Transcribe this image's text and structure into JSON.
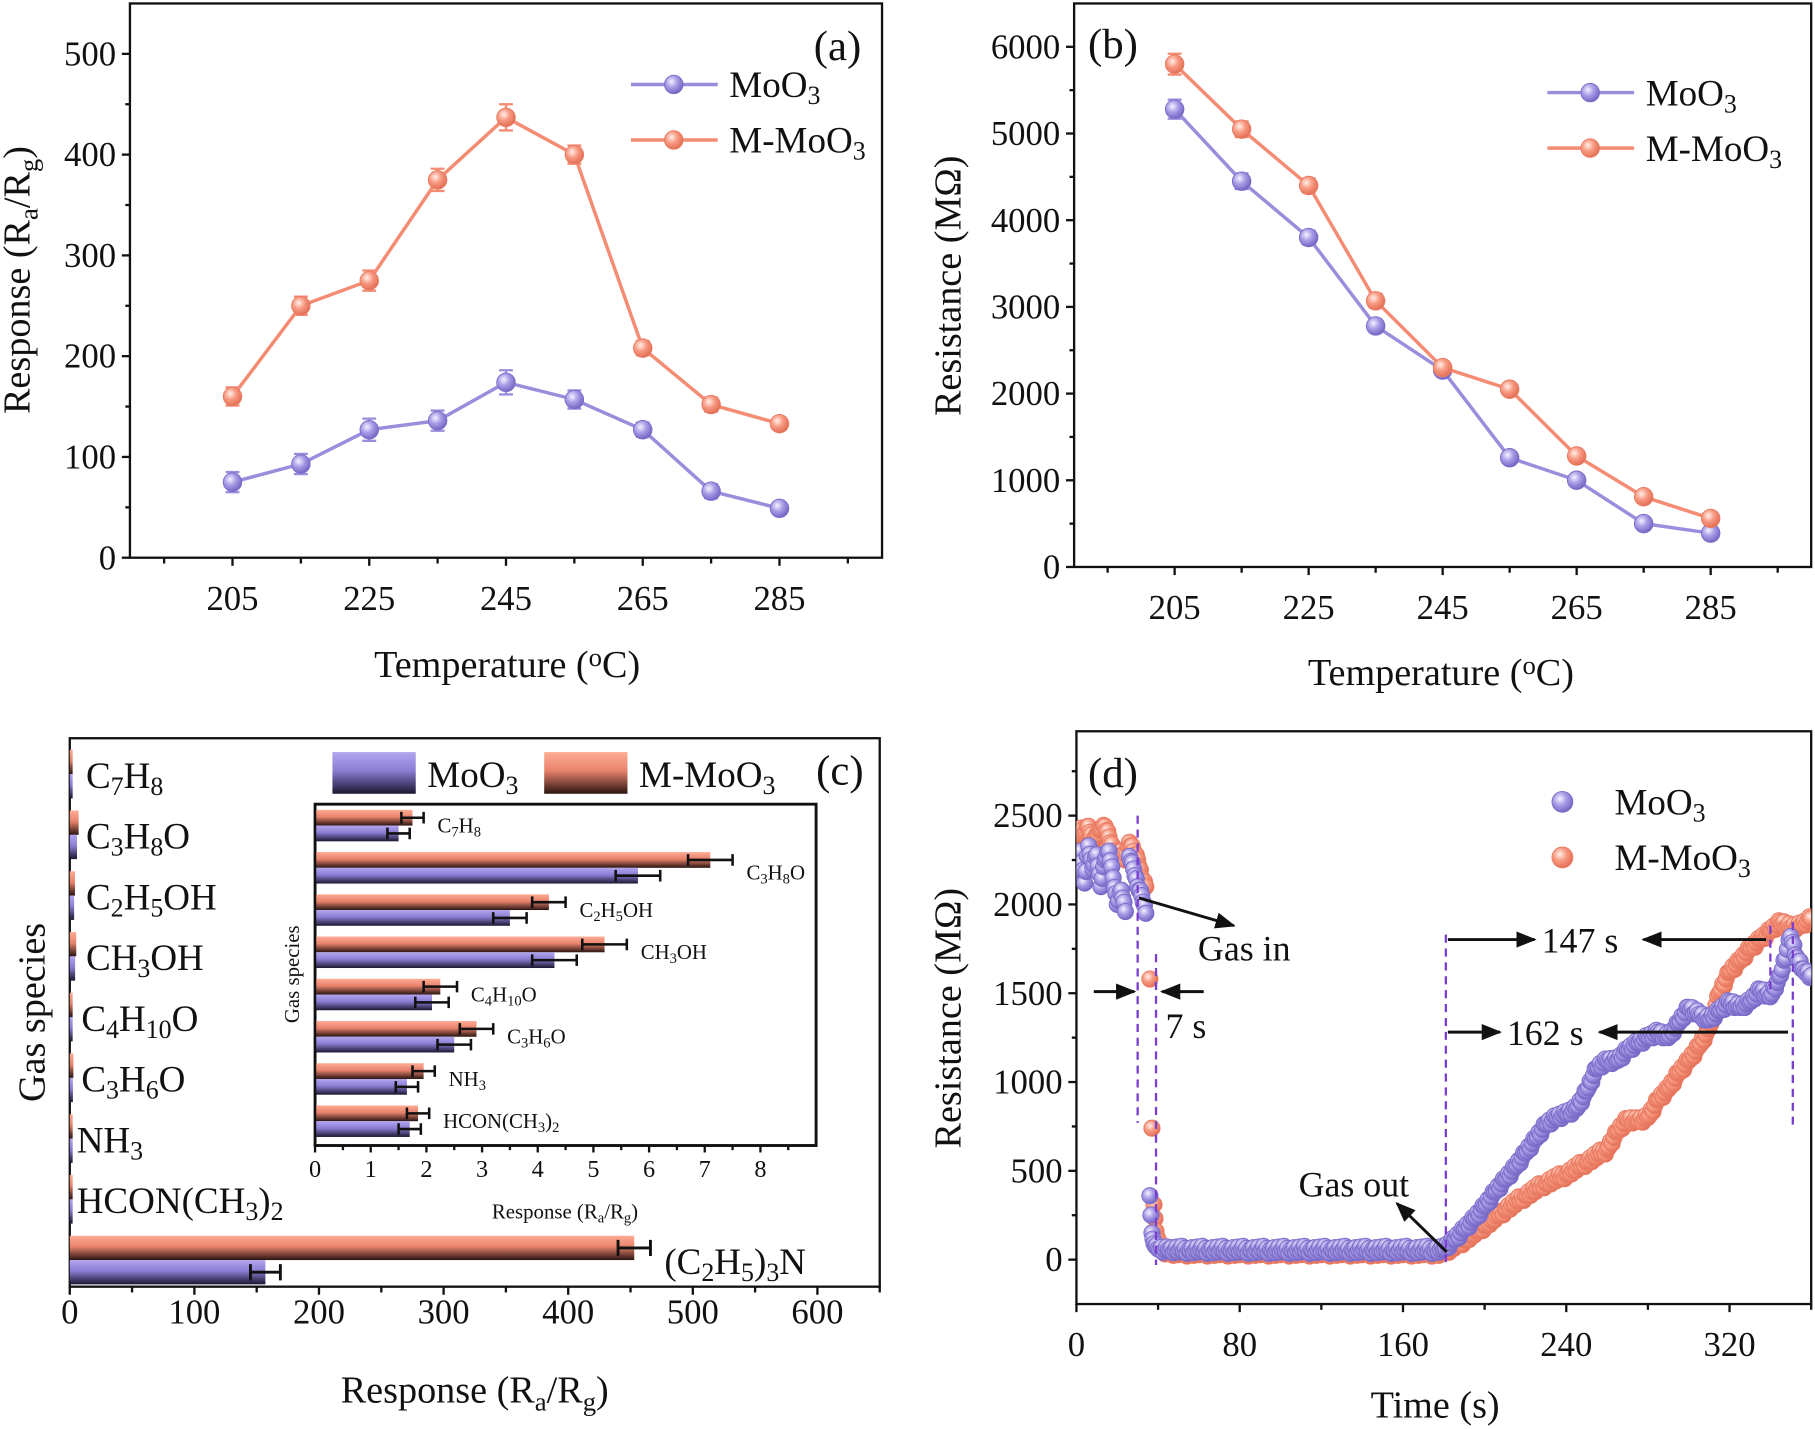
{
  "colors": {
    "MoO3": "#9a8ddb",
    "M-MoO3": "#f48c74",
    "axis": "#111111",
    "guide": "#7a3fd0"
  },
  "chart_data": [
    {
      "panel": "(a)",
      "type": "line",
      "xlabel": "Temperature (oC)",
      "ylabel": "Response (Ra/Rg)",
      "xlim": [
        190,
        300
      ],
      "ylim": [
        0,
        550
      ],
      "xticks": [
        205,
        225,
        245,
        265,
        285
      ],
      "yticks": [
        0,
        100,
        200,
        300,
        400,
        500
      ],
      "legend": "top-right",
      "x": [
        205,
        215,
        225,
        235,
        245,
        255,
        265,
        275,
        285
      ],
      "series": [
        {
          "name": "MoO3",
          "values": [
            75,
            93,
            127,
            136,
            174,
            157,
            127,
            66,
            49
          ],
          "errors": [
            10,
            10,
            11,
            10,
            12,
            9,
            7,
            7,
            5
          ]
        },
        {
          "name": "M-MoO3",
          "values": [
            160,
            250,
            275,
            375,
            437,
            400,
            208,
            152,
            133
          ],
          "errors": [
            9,
            9,
            10,
            11,
            13,
            9,
            7,
            7,
            6
          ]
        }
      ]
    },
    {
      "panel": "(b)",
      "type": "line",
      "xlabel": "Temperature (oC)",
      "ylabel": "Resistance (MΩ)",
      "xlim": [
        190,
        300
      ],
      "ylim": [
        0,
        6500
      ],
      "xticks": [
        205,
        225,
        245,
        265,
        285
      ],
      "yticks": [
        0,
        1000,
        2000,
        3000,
        4000,
        5000,
        6000
      ],
      "legend": "top-right",
      "x": [
        205,
        215,
        225,
        235,
        245,
        255,
        265,
        275,
        285
      ],
      "series": [
        {
          "name": "MoO3",
          "values": [
            5280,
            4450,
            3800,
            2780,
            2270,
            1260,
            1000,
            500,
            390
          ],
          "errors": [
            110,
            90,
            80,
            70,
            70,
            60,
            60,
            60,
            70
          ]
        },
        {
          "name": "M-MoO3",
          "values": [
            5800,
            5050,
            4400,
            3070,
            2300,
            2050,
            1280,
            810,
            560
          ],
          "errors": [
            120,
            90,
            80,
            80,
            70,
            60,
            60,
            60,
            60
          ]
        }
      ]
    },
    {
      "panel": "(c)",
      "type": "bar",
      "orientation": "horizontal",
      "xlabel": "Response (Ra/Rg)",
      "ylabel": "Gas species",
      "xlim": [
        0,
        650
      ],
      "xticks": [
        0,
        100,
        200,
        300,
        400,
        500,
        600
      ],
      "legend": "top",
      "categories": [
        "C7H8",
        "C3H8O",
        "C2H5OH",
        "CH3OH",
        "C4H10O",
        "C3H6O",
        "NH3",
        "HCON(CH3)2",
        "(C2H5)3N"
      ],
      "series": [
        {
          "name": "MoO3",
          "values": [
            1.5,
            5.8,
            3.5,
            4.3,
            2.1,
            2.5,
            1.65,
            1.7,
            157
          ],
          "errors": [
            0.2,
            0.4,
            0.3,
            0.4,
            0.3,
            0.3,
            0.2,
            0.2,
            12
          ]
        },
        {
          "name": "M-MoO3",
          "values": [
            1.75,
            7.1,
            4.2,
            5.2,
            2.25,
            2.9,
            1.95,
            1.85,
            453
          ],
          "errors": [
            0.2,
            0.4,
            0.3,
            0.4,
            0.3,
            0.3,
            0.2,
            0.2,
            13
          ]
        }
      ],
      "inset": {
        "type": "bar",
        "orientation": "horizontal",
        "xlabel": "Response (Ra/Rg)",
        "ylabel": "Gas species",
        "xlim": [
          0,
          9
        ],
        "xticks": [
          0,
          1,
          2,
          3,
          4,
          5,
          6,
          7,
          8
        ],
        "categories": [
          "C7H8",
          "C3H8O",
          "C2H5OH",
          "CH3OH",
          "C4H10O",
          "C3H6O",
          "NH3",
          "HCON(CH3)2"
        ]
      }
    },
    {
      "panel": "(d)",
      "type": "scatter",
      "xlabel": "Time (s)",
      "ylabel": "Resistance (MΩ)",
      "xlim": [
        0,
        360
      ],
      "ylim": [
        -250,
        2975
      ],
      "xticks": [
        0,
        80,
        160,
        240,
        320
      ],
      "yticks": [
        0,
        500,
        1000,
        1500,
        2000,
        2500
      ],
      "legend": "top-right",
      "series": [
        {
          "name": "MoO3",
          "points": [
            [
              0,
              2150
            ],
            [
              2,
              2300
            ],
            [
              4,
              2120
            ],
            [
              6,
              2330
            ],
            [
              8,
              2200
            ],
            [
              10,
              2280
            ],
            [
              12,
              2100
            ],
            [
              14,
              2250
            ],
            [
              16,
              2300
            ],
            [
              18,
              2150
            ],
            [
              20,
              2000
            ],
            [
              22,
              2080
            ],
            [
              24,
              1960
            ],
            [
              26,
              2270
            ],
            [
              28,
              2200
            ],
            [
              30,
              2100
            ],
            [
              32,
              2050
            ],
            [
              34,
              1950
            ],
            [
              36,
              360
            ],
            [
              37,
              150
            ],
            [
              38,
              90
            ],
            [
              40,
              60
            ],
            [
              45,
              55
            ],
            [
              55,
              55
            ],
            [
              65,
              55
            ],
            [
              75,
              55
            ],
            [
              85,
              55
            ],
            [
              95,
              55
            ],
            [
              105,
              55
            ],
            [
              115,
              55
            ],
            [
              125,
              55
            ],
            [
              135,
              55
            ],
            [
              145,
              55
            ],
            [
              155,
              55
            ],
            [
              165,
              55
            ],
            [
              175,
              55
            ],
            [
              180,
              60
            ],
            [
              185,
              110
            ],
            [
              190,
              170
            ],
            [
              195,
              230
            ],
            [
              200,
              300
            ],
            [
              205,
              380
            ],
            [
              210,
              450
            ],
            [
              215,
              520
            ],
            [
              220,
              600
            ],
            [
              225,
              680
            ],
            [
              230,
              760
            ],
            [
              235,
              800
            ],
            [
              240,
              820
            ],
            [
              245,
              850
            ],
            [
              250,
              950
            ],
            [
              255,
              1080
            ],
            [
              260,
              1120
            ],
            [
              265,
              1120
            ],
            [
              270,
              1180
            ],
            [
              275,
              1220
            ],
            [
              280,
              1250
            ],
            [
              285,
              1280
            ],
            [
              290,
              1250
            ],
            [
              295,
              1330
            ],
            [
              300,
              1420
            ],
            [
              305,
              1380
            ],
            [
              310,
              1350
            ],
            [
              315,
              1400
            ],
            [
              320,
              1450
            ],
            [
              325,
              1420
            ],
            [
              330,
              1450
            ],
            [
              335,
              1520
            ],
            [
              340,
              1480
            ],
            [
              345,
              1600
            ],
            [
              350,
              1820
            ],
            [
              353,
              1700
            ],
            [
              357,
              1620
            ],
            [
              360,
              1600
            ]
          ]
        },
        {
          "name": "M-MoO3",
          "points": [
            [
              0,
              2380
            ],
            [
              2,
              2430
            ],
            [
              4,
              2400
            ],
            [
              6,
              2440
            ],
            [
              8,
              2350
            ],
            [
              10,
              2380
            ],
            [
              12,
              2420
            ],
            [
              14,
              2440
            ],
            [
              16,
              2380
            ],
            [
              18,
              2300
            ],
            [
              20,
              2260
            ],
            [
              22,
              2300
            ],
            [
              24,
              2250
            ],
            [
              26,
              2350
            ],
            [
              28,
              2300
            ],
            [
              30,
              2250
            ],
            [
              32,
              2150
            ],
            [
              34,
              2100
            ],
            [
              36,
              1580
            ],
            [
              37,
              740
            ],
            [
              38,
              310
            ],
            [
              39,
              160
            ],
            [
              41,
              60
            ],
            [
              45,
              40
            ],
            [
              55,
              40
            ],
            [
              65,
              40
            ],
            [
              75,
              40
            ],
            [
              85,
              40
            ],
            [
              95,
              40
            ],
            [
              105,
              40
            ],
            [
              115,
              40
            ],
            [
              125,
              40
            ],
            [
              135,
              40
            ],
            [
              145,
              40
            ],
            [
              155,
              40
            ],
            [
              165,
              40
            ],
            [
              175,
              40
            ],
            [
              180,
              40
            ],
            [
              190,
              110
            ],
            [
              200,
              190
            ],
            [
              210,
              280
            ],
            [
              220,
              360
            ],
            [
              230,
              430
            ],
            [
              240,
              480
            ],
            [
              250,
              550
            ],
            [
              260,
              620
            ],
            [
              265,
              720
            ],
            [
              270,
              790
            ],
            [
              275,
              780
            ],
            [
              280,
              800
            ],
            [
              285,
              900
            ],
            [
              290,
              960
            ],
            [
              295,
              1050
            ],
            [
              300,
              1120
            ],
            [
              305,
              1200
            ],
            [
              310,
              1300
            ],
            [
              315,
              1500
            ],
            [
              320,
              1620
            ],
            [
              325,
              1680
            ],
            [
              330,
              1750
            ],
            [
              335,
              1800
            ],
            [
              340,
              1850
            ],
            [
              345,
              1900
            ],
            [
              350,
              1870
            ],
            [
              355,
              1880
            ],
            [
              360,
              1920
            ]
          ]
        }
      ],
      "annotations": {
        "gas_in": "Gas in",
        "gas_out": "Gas out",
        "switch_time": "7 s",
        "recovery_m_moo3": "147 s",
        "recovery_moo3": "162 s"
      }
    }
  ]
}
